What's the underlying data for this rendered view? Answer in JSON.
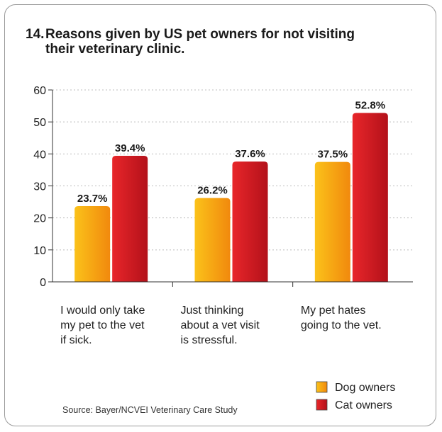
{
  "title": {
    "number": "14.",
    "line1": "Reasons given by US pet owners for not visiting",
    "line2": "their veterinary clinic."
  },
  "source": "Source: Bayer/NCVEI Veterinary Care Study",
  "colors": {
    "dog": "#f6a50f",
    "cat": "#d61a1f",
    "grid": "#bdbdbd",
    "axis": "#333333"
  },
  "chart_data": {
    "type": "bar",
    "title": "Reasons given by US pet owners for not visiting their veterinary clinic.",
    "categories": [
      [
        "I would only take",
        "my pet to the vet",
        "if sick."
      ],
      [
        "Just thinking",
        "about a vet visit",
        "is stressful."
      ],
      [
        "My pet hates",
        "going to the vet."
      ]
    ],
    "series": [
      {
        "name": "Dog owners",
        "values": [
          23.7,
          26.2,
          37.5
        ],
        "labels": [
          "23.7%",
          "26.2%",
          "37.5%"
        ]
      },
      {
        "name": "Cat owners",
        "values": [
          39.4,
          37.6,
          52.8
        ],
        "labels": [
          "39.4%",
          "37.6%",
          "52.8%"
        ]
      }
    ],
    "ylim": [
      0,
      60
    ],
    "yticks": [
      "0",
      "10",
      "20",
      "30",
      "40",
      "50",
      "60"
    ],
    "grid": true,
    "legend": "bottom-right"
  }
}
